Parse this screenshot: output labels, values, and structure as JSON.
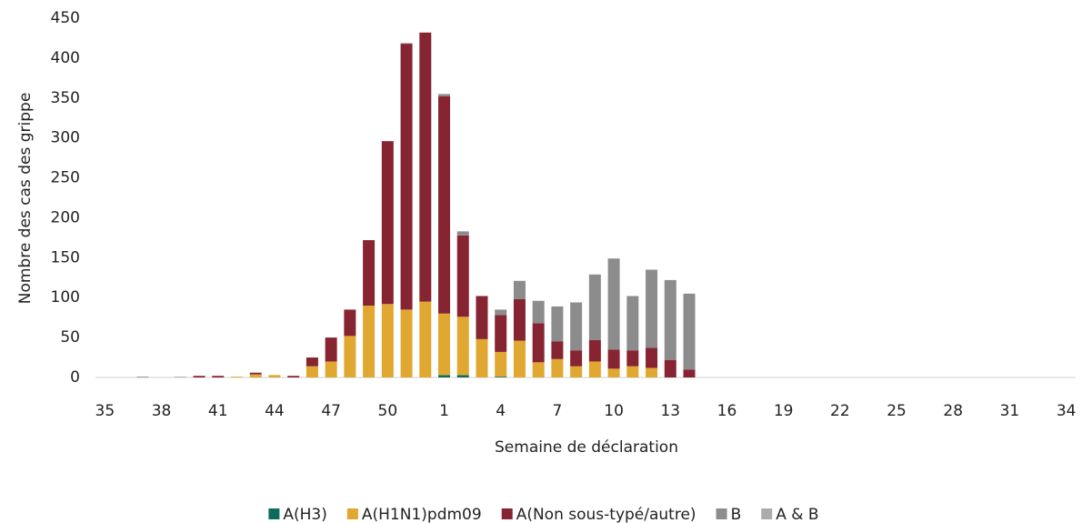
{
  "chart_data": {
    "type": "stacked-bar",
    "x_label": "Semaine de déclaration",
    "y_label": "Nombre des cas des grippe",
    "categories": [
      "35",
      null,
      null,
      "38",
      null,
      null,
      "41",
      null,
      null,
      "44",
      null,
      null,
      "47",
      null,
      null,
      "50",
      null,
      null,
      "1",
      null,
      null,
      "4",
      null,
      null,
      "7",
      null,
      null,
      "10",
      null,
      null,
      "13",
      null,
      null,
      "16",
      null,
      null,
      "19",
      null,
      null,
      "22",
      null,
      null,
      "25",
      null,
      null,
      "28",
      null,
      null,
      "31",
      null,
      null,
      "34"
    ],
    "series": [
      {
        "name": "A(H3)",
        "color": "#0e6b5c",
        "values": [
          0,
          0,
          0,
          0,
          0,
          0,
          0,
          0,
          0,
          0,
          0,
          0,
          0,
          0,
          0,
          0,
          0,
          0,
          3,
          3,
          0,
          1,
          0,
          0,
          0,
          0,
          0,
          0,
          0,
          0,
          0,
          0,
          0,
          0,
          0,
          0,
          0,
          0,
          0,
          0,
          0,
          0,
          0,
          0,
          0,
          0,
          0,
          0,
          0,
          0,
          0,
          0
        ]
      },
      {
        "name": "A(H1N1)pdm09",
        "color": "#e0a830",
        "values": [
          0,
          0,
          0,
          0,
          0,
          0,
          0,
          1,
          4,
          3,
          0,
          14,
          20,
          52,
          90,
          92,
          85,
          95,
          77,
          73,
          48,
          31,
          46,
          19,
          23,
          14,
          20,
          11,
          14,
          12,
          0,
          0,
          0,
          0,
          0,
          0,
          0,
          0,
          0,
          0,
          0,
          0,
          0,
          0,
          0,
          0,
          0,
          0,
          0,
          0,
          0,
          0
        ]
      },
      {
        "name": "A(Non sous-typé/autre)",
        "color": "#862431",
        "values": [
          0,
          0,
          0,
          0,
          0,
          2,
          2,
          0,
          2,
          0,
          2,
          11,
          30,
          33,
          82,
          204,
          333,
          337,
          272,
          102,
          54,
          46,
          52,
          49,
          22,
          20,
          27,
          24,
          20,
          25,
          22,
          10,
          0,
          0,
          0,
          0,
          0,
          0,
          0,
          0,
          0,
          0,
          0,
          0,
          0,
          0,
          0,
          0,
          0,
          0,
          0,
          0
        ]
      },
      {
        "name": "B",
        "color": "#8c8c8c",
        "values": [
          0,
          0,
          1,
          0,
          0,
          0,
          0,
          0,
          0,
          0,
          0,
          0,
          0,
          0,
          0,
          0,
          0,
          0,
          3,
          5,
          0,
          7,
          23,
          28,
          44,
          60,
          82,
          114,
          68,
          98,
          100,
          95,
          0,
          0,
          0,
          0,
          0,
          0,
          0,
          0,
          0,
          0,
          0,
          0,
          0,
          0,
          0,
          0,
          0,
          0,
          0,
          0
        ]
      },
      {
        "name": "A & B",
        "color": "#ababab",
        "values": [
          0,
          0,
          0,
          0,
          1,
          0,
          0,
          0,
          0,
          0,
          0,
          0,
          0,
          0,
          0,
          0,
          1,
          0,
          0,
          0,
          0,
          0,
          0,
          0,
          0,
          0,
          0,
          0,
          0,
          0,
          0,
          0,
          0,
          0,
          0,
          0,
          0,
          0,
          0,
          0,
          0,
          0,
          0,
          0,
          0,
          0,
          0,
          0,
          0,
          0,
          0,
          0
        ]
      }
    ],
    "ylim": [
      0,
      450
    ],
    "yticks": [
      0,
      50,
      100,
      150,
      200,
      250,
      300,
      350,
      400,
      450
    ],
    "grid": false,
    "legend": "bottom"
  }
}
